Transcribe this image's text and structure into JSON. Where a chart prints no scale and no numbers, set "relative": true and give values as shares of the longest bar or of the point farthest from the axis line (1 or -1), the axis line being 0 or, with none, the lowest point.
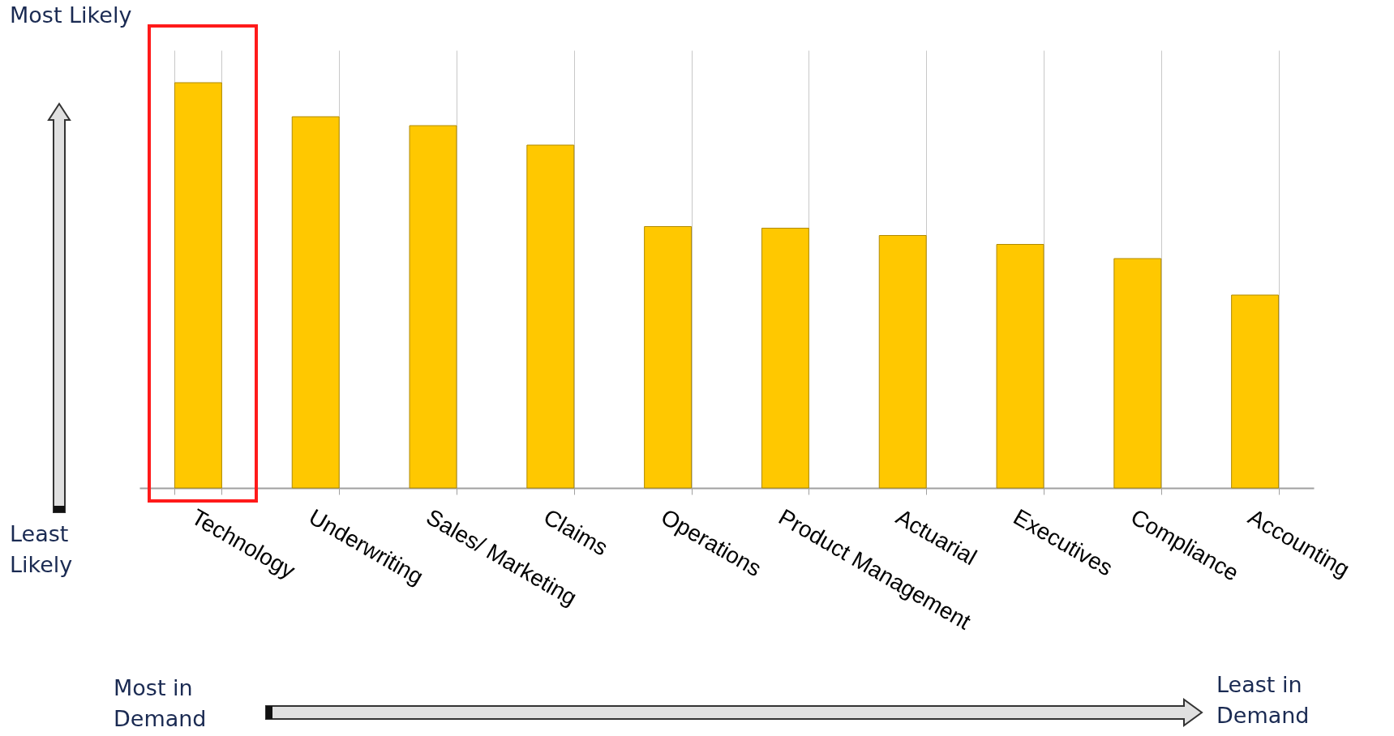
{
  "chart_data": {
    "type": "bar",
    "relative": true,
    "grid": "x",
    "color": "#ffc800",
    "categories": [
      "Technology",
      "Underwriting",
      "Sales/ Marketing",
      "Claims",
      "Operations",
      "Product Management",
      "Actuarial",
      "Executives",
      "Compliance",
      "Accounting"
    ],
    "values": [
      1,
      0.916,
      0.894,
      0.846,
      0.645,
      0.641,
      0.623,
      0.601,
      0.566,
      0.476
    ],
    "annotations": [
      "Most Likely",
      "Least\nLikely",
      "Most in\nDemand",
      "Least in\nDemand"
    ]
  }
}
